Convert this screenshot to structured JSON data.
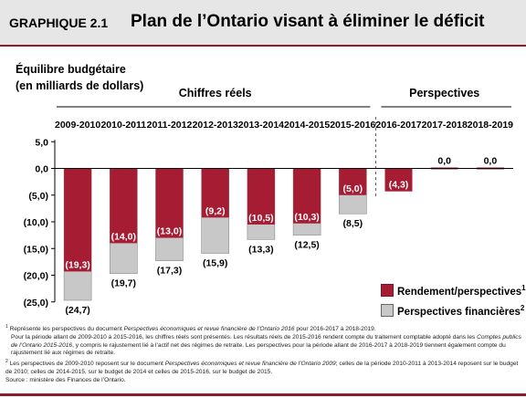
{
  "header": {
    "figure_tag": "GRAPHIQUE 2.1",
    "title": "Plan de l’Ontario visant à éliminer le déficit"
  },
  "colors": {
    "band": "#e6e6e6",
    "rule": "#8a1c2e",
    "actual": "#a61c33",
    "projection": "#c8c8c8"
  },
  "chart_data": {
    "type": "bar",
    "ylabel_line1": "Équilibre budgétaire",
    "ylabel_line2": "(en milliards de dollars)",
    "group_actual": "Chiffres réels",
    "group_outlook": "Perspectives",
    "categories": [
      "2009-2010",
      "2010-2011",
      "2011-2012",
      "2012-2013",
      "2013-2014",
      "2014-2015",
      "2015-2016",
      "2016-2017",
      "2017-2018",
      "2018-2019"
    ],
    "ylim": [
      -25,
      5
    ],
    "yticks": [
      5,
      0,
      -5,
      -10,
      -15,
      -20,
      -25
    ],
    "ytick_labels": [
      "5,0",
      "0,0",
      "(5,0)",
      "(10,0)",
      "(15,0)",
      "(20,0)",
      "(25,0)"
    ],
    "series": [
      {
        "name": "Rendement/perspectives",
        "superscript": "1",
        "values": [
          -19.3,
          -14.0,
          -13.0,
          -9.2,
          -10.5,
          -10.3,
          -5.0,
          -4.3,
          0.0,
          0.0
        ],
        "labels": [
          "(19,3)",
          "(14,0)",
          "(13,0)",
          "(9,2)",
          "(10,5)",
          "(10,3)",
          "(5,0)",
          "(4,3)",
          "0,0",
          "0,0"
        ]
      },
      {
        "name": "Perspectives financières",
        "superscript": "2",
        "values": [
          -24.7,
          -19.7,
          -17.3,
          -15.9,
          -13.3,
          -12.5,
          -8.5,
          null,
          null,
          null
        ],
        "labels": [
          "(24,7)",
          "(19,7)",
          "(17,3)",
          "(15,9)",
          "(13,3)",
          "(12,5)",
          "(8,5)",
          "",
          "",
          ""
        ]
      }
    ]
  },
  "notes": {
    "n1_sup": "1",
    "n1_a": "Représente les perspectives du document ",
    "n1_a_em": "Perspectives économiques et revue financière de l’Ontario 2016",
    "n1_a_end": " pour 2016-2017 à 2018-2019.",
    "n1_b": "Pour la période allant de 2009-2010 à 2015-2016, les chiffres réels sont présentés. Les résultats réels de 2015-2016 rendent compte du traitement comptable adopté dans les ",
    "n1_b_em": "Comptes publics de l’Ontario 2015-2016",
    "n1_b_end": ", y compris le rajustement lié à l’actif net des régimes de retraite. Les perspectives pour la période allant de 2016-2017 à 2018-2019 tiennent également compte du rajustement lié aux régimes de retraite.",
    "n2_sup": "2",
    "n2_a": "Les perspectives de 2009-2010 reposent sur le document ",
    "n2_a_em": "Perspectives économiques et revue financière de l’Ontario 2009",
    "n2_a_end": "; celles de la période 2010-2011 à 2013-2014 reposent sur le budget de 2010; celles de 2014-2015, sur le budget de 2014 et celles de 2015-2016, sur le budget de 2015.",
    "source": "Source : ministère des Finances de l’Ontario."
  }
}
